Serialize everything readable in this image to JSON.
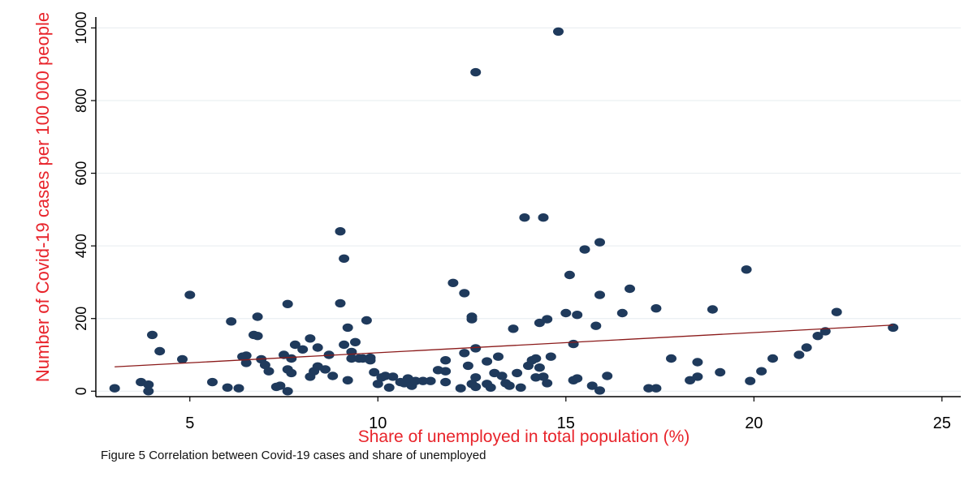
{
  "chart_data": {
    "type": "scatter",
    "title": "",
    "xlabel": "Share of unemployed in total population (%)",
    "ylabel": "Number of Covid-19 cases per 100 000 people",
    "xlim": [
      2.5,
      25.5
    ],
    "ylim": [
      -15,
      1030
    ],
    "xticks": [
      "5",
      "10",
      "15",
      "20",
      "25"
    ],
    "yticks": [
      "0",
      "200",
      "400",
      "600",
      "800",
      "1000"
    ],
    "grid": "horizontal",
    "series": [
      {
        "type": "scatter",
        "color": "#1f3a5c",
        "points": [
          [
            3.0,
            8
          ],
          [
            3.7,
            25
          ],
          [
            3.9,
            18
          ],
          [
            3.9,
            0
          ],
          [
            4.0,
            155
          ],
          [
            4.2,
            110
          ],
          [
            5.0,
            265
          ],
          [
            4.8,
            88
          ],
          [
            5.6,
            25
          ],
          [
            6.0,
            10
          ],
          [
            6.1,
            192
          ],
          [
            6.3,
            8
          ],
          [
            6.4,
            95
          ],
          [
            6.5,
            98
          ],
          [
            6.5,
            78
          ],
          [
            6.7,
            155
          ],
          [
            6.8,
            152
          ],
          [
            6.8,
            205
          ],
          [
            6.9,
            88
          ],
          [
            7.0,
            72
          ],
          [
            7.1,
            55
          ],
          [
            7.3,
            12
          ],
          [
            7.4,
            15
          ],
          [
            7.5,
            100
          ],
          [
            7.6,
            0
          ],
          [
            7.6,
            240
          ],
          [
            7.6,
            60
          ],
          [
            7.7,
            50
          ],
          [
            7.7,
            90
          ],
          [
            7.8,
            128
          ],
          [
            8.0,
            115
          ],
          [
            8.2,
            145
          ],
          [
            8.2,
            40
          ],
          [
            8.3,
            55
          ],
          [
            8.4,
            120
          ],
          [
            8.4,
            68
          ],
          [
            8.6,
            60
          ],
          [
            8.7,
            100
          ],
          [
            8.8,
            42
          ],
          [
            9.0,
            242
          ],
          [
            9.0,
            440
          ],
          [
            9.1,
            365
          ],
          [
            9.1,
            128
          ],
          [
            9.2,
            30
          ],
          [
            9.2,
            175
          ],
          [
            9.3,
            108
          ],
          [
            9.3,
            90
          ],
          [
            9.4,
            135
          ],
          [
            9.5,
            90
          ],
          [
            9.6,
            90
          ],
          [
            9.7,
            195
          ],
          [
            9.8,
            92
          ],
          [
            9.8,
            85
          ],
          [
            9.9,
            52
          ],
          [
            10.0,
            20
          ],
          [
            10.1,
            38
          ],
          [
            10.2,
            42
          ],
          [
            10.3,
            10
          ],
          [
            10.4,
            40
          ],
          [
            10.6,
            25
          ],
          [
            10.7,
            22
          ],
          [
            10.8,
            35
          ],
          [
            10.9,
            15
          ],
          [
            11.0,
            28
          ],
          [
            11.2,
            28
          ],
          [
            11.4,
            28
          ],
          [
            11.6,
            58
          ],
          [
            11.8,
            55
          ],
          [
            11.8,
            25
          ],
          [
            11.8,
            85
          ],
          [
            12.0,
            298
          ],
          [
            12.2,
            8
          ],
          [
            12.3,
            105
          ],
          [
            12.3,
            270
          ],
          [
            12.4,
            70
          ],
          [
            12.5,
            205
          ],
          [
            12.5,
            198
          ],
          [
            12.5,
            20
          ],
          [
            12.6,
            12
          ],
          [
            12.6,
            878
          ],
          [
            12.6,
            118
          ],
          [
            12.6,
            38
          ],
          [
            12.9,
            20
          ],
          [
            12.9,
            82
          ],
          [
            13.0,
            10
          ],
          [
            13.1,
            50
          ],
          [
            13.2,
            95
          ],
          [
            13.3,
            42
          ],
          [
            13.4,
            22
          ],
          [
            13.5,
            15
          ],
          [
            13.6,
            172
          ],
          [
            13.7,
            50
          ],
          [
            13.8,
            10
          ],
          [
            13.9,
            478
          ],
          [
            14.0,
            70
          ],
          [
            14.1,
            85
          ],
          [
            14.2,
            38
          ],
          [
            14.2,
            90
          ],
          [
            14.3,
            188
          ],
          [
            14.3,
            65
          ],
          [
            14.4,
            40
          ],
          [
            14.4,
            478
          ],
          [
            14.5,
            22
          ],
          [
            14.5,
            198
          ],
          [
            14.6,
            95
          ],
          [
            14.8,
            990
          ],
          [
            15.0,
            215
          ],
          [
            15.1,
            320
          ],
          [
            15.2,
            130
          ],
          [
            15.2,
            30
          ],
          [
            15.3,
            210
          ],
          [
            15.3,
            35
          ],
          [
            15.5,
            390
          ],
          [
            15.7,
            15
          ],
          [
            15.8,
            180
          ],
          [
            15.9,
            265
          ],
          [
            15.9,
            410
          ],
          [
            15.9,
            2
          ],
          [
            16.1,
            42
          ],
          [
            16.5,
            215
          ],
          [
            16.7,
            282
          ],
          [
            17.2,
            8
          ],
          [
            17.4,
            8
          ],
          [
            17.4,
            228
          ],
          [
            17.8,
            90
          ],
          [
            18.3,
            30
          ],
          [
            18.5,
            80
          ],
          [
            18.5,
            40
          ],
          [
            18.9,
            225
          ],
          [
            19.1,
            52
          ],
          [
            19.8,
            335
          ],
          [
            19.9,
            28
          ],
          [
            20.2,
            55
          ],
          [
            20.5,
            90
          ],
          [
            21.2,
            100
          ],
          [
            21.4,
            120
          ],
          [
            21.7,
            152
          ],
          [
            21.9,
            165
          ],
          [
            22.2,
            218
          ],
          [
            23.7,
            175
          ]
        ]
      },
      {
        "type": "line",
        "color": "#8b1a1a",
        "points": [
          [
            3.0,
            67
          ],
          [
            23.7,
            182
          ]
        ]
      }
    ],
    "caption": "Figure 5 Correlation between Covid-19 cases and share of unemployed"
  }
}
